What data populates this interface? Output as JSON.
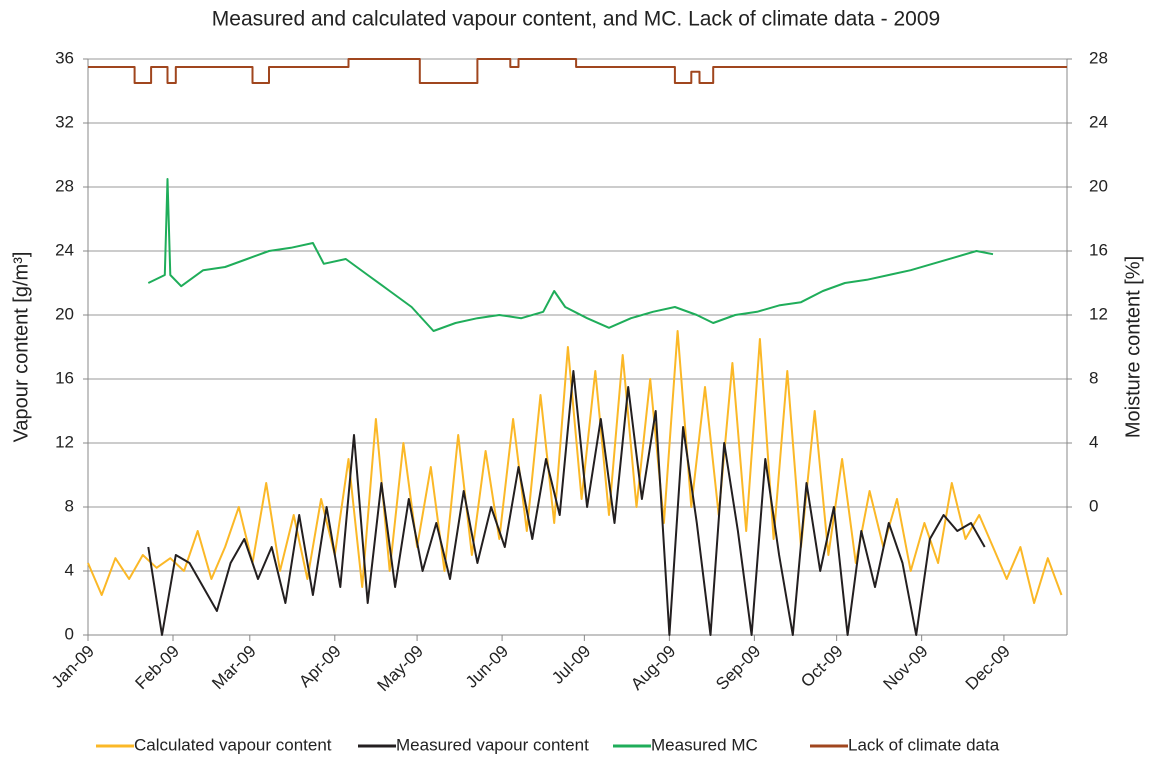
{
  "chart_data": {
    "type": "line",
    "title": "Measured and calculated vapour content, and MC. Lack of climate data - 2009",
    "y_label": "Vapour content [g/m³]",
    "y2_label": "Moisture content [%]",
    "xlim": [
      0,
      357
    ],
    "xticks": [
      {
        "value": 0,
        "label": "Jan-09"
      },
      {
        "value": 31,
        "label": "Feb-09"
      },
      {
        "value": 59,
        "label": "Mar-09"
      },
      {
        "value": 90,
        "label": "Apr-09"
      },
      {
        "value": 120,
        "label": "May-09"
      },
      {
        "value": 151,
        "label": "Jun-09"
      },
      {
        "value": 181,
        "label": "Jul-09"
      },
      {
        "value": 212,
        "label": "Aug-09"
      },
      {
        "value": 243,
        "label": "Sep-09"
      },
      {
        "value": 273,
        "label": "Oct-09"
      },
      {
        "value": 304,
        "label": "Nov-09"
      },
      {
        "value": 334,
        "label": "Dec-09"
      }
    ],
    "ylim": [
      0,
      36
    ],
    "yticks": [
      0,
      4,
      8,
      12,
      16,
      20,
      24,
      28,
      32,
      36
    ],
    "y2lim": [
      -8,
      28
    ],
    "y2ticks": [
      0,
      4,
      8,
      12,
      16,
      20,
      24,
      28
    ],
    "grid": true,
    "legend": "bottom",
    "series": [
      {
        "name": "Calculated vapour content",
        "color": "#fbb827",
        "x": [
          0,
          5,
          10,
          15,
          20,
          25,
          30,
          35,
          40,
          45,
          50,
          55,
          60,
          65,
          70,
          75,
          80,
          85,
          90,
          95,
          100,
          105,
          110,
          115,
          120,
          125,
          130,
          135,
          140,
          145,
          150,
          155,
          160,
          165,
          170,
          175,
          180,
          185,
          190,
          195,
          200,
          205,
          210,
          215,
          220,
          225,
          230,
          235,
          240,
          245,
          250,
          255,
          260,
          265,
          270,
          275,
          280,
          285,
          290,
          295,
          300,
          305,
          310,
          315,
          320,
          325,
          330,
          335,
          340,
          345,
          350,
          355
        ],
        "values": [
          4.5,
          2.5,
          4.8,
          3.5,
          5.0,
          4.2,
          4.8,
          4.0,
          6.5,
          3.5,
          5.5,
          8.0,
          4.5,
          9.5,
          4.0,
          7.5,
          3.5,
          8.5,
          5.0,
          11.0,
          3.0,
          13.5,
          4.0,
          12.0,
          5.5,
          10.5,
          4.0,
          12.5,
          5.0,
          11.5,
          6.0,
          13.5,
          6.5,
          15.0,
          7.0,
          18.0,
          8.5,
          16.5,
          7.5,
          17.5,
          8.0,
          16.0,
          7.0,
          19.0,
          8.0,
          15.5,
          7.5,
          17.0,
          6.5,
          18.5,
          6.0,
          16.5,
          5.5,
          14.0,
          5.0,
          11.0,
          4.5,
          9.0,
          5.5,
          8.5,
          4.0,
          7.0,
          4.5,
          9.5,
          6.0,
          7.5,
          5.5,
          3.5,
          5.5,
          2.0,
          4.8,
          2.5
        ]
      },
      {
        "name": "Measured vapour content",
        "color": "#231f20",
        "x": [
          22,
          27,
          32,
          37,
          42,
          47,
          52,
          57,
          62,
          67,
          72,
          77,
          82,
          87,
          92,
          97,
          102,
          107,
          112,
          117,
          122,
          127,
          132,
          137,
          142,
          147,
          152,
          157,
          162,
          167,
          172,
          177,
          182,
          187,
          192,
          197,
          202,
          207,
          212,
          217,
          222,
          227,
          232,
          237,
          242,
          247,
          252,
          257,
          262,
          267,
          272,
          277,
          282,
          287,
          292,
          297,
          302,
          307,
          312,
          317,
          322,
          327
        ],
        "values": [
          5.5,
          0,
          5.0,
          4.5,
          3.0,
          1.5,
          4.5,
          6.0,
          3.5,
          5.5,
          2.0,
          7.5,
          2.5,
          8.0,
          3.0,
          12.5,
          2.0,
          9.5,
          3.0,
          8.5,
          4.0,
          7.0,
          3.5,
          9.0,
          4.5,
          8.0,
          5.5,
          10.5,
          6.0,
          11.0,
          7.5,
          16.5,
          8.0,
          13.5,
          7.0,
          15.5,
          8.5,
          14.0,
          0,
          13.0,
          7.0,
          0,
          12.0,
          6.5,
          0,
          11.0,
          5.0,
          0,
          9.5,
          4.0,
          8.0,
          0,
          6.5,
          3.0,
          7.0,
          4.5,
          0,
          6.0,
          7.5,
          6.5,
          7.0,
          5.5
        ]
      },
      {
        "name": "Measured MC",
        "color": "#1fad5a",
        "axis": "y2",
        "x": [
          22,
          28,
          29,
          30,
          34,
          42,
          50,
          58,
          66,
          74,
          82,
          86,
          94,
          102,
          110,
          118,
          126,
          134,
          142,
          150,
          158,
          166,
          170,
          174,
          182,
          190,
          198,
          206,
          214,
          222,
          228,
          236,
          244,
          252,
          260,
          268,
          276,
          284,
          292,
          300,
          308,
          316,
          324,
          330
        ],
        "values": [
          14.0,
          14.5,
          20.5,
          14.5,
          13.8,
          14.8,
          15.0,
          15.5,
          16.0,
          16.2,
          16.5,
          15.2,
          15.5,
          14.5,
          13.5,
          12.5,
          11.0,
          11.5,
          11.8,
          12.0,
          11.8,
          12.2,
          13.5,
          12.5,
          11.8,
          11.2,
          11.8,
          12.2,
          12.5,
          12.0,
          11.5,
          12.0,
          12.2,
          12.6,
          12.8,
          13.5,
          14.0,
          14.2,
          14.5,
          14.8,
          15.2,
          15.6,
          16.0,
          15.8
        ]
      },
      {
        "name": "Lack of climate data",
        "color": "#a0461e",
        "x": [
          0,
          17,
          17,
          23,
          23,
          29,
          29,
          32,
          32,
          60,
          60,
          66,
          66,
          95,
          95,
          121,
          121,
          142,
          142,
          154,
          154,
          157,
          157,
          178,
          178,
          214,
          214,
          220,
          220,
          223,
          223,
          228,
          228,
          240,
          240,
          357
        ],
        "values": [
          35.5,
          35.5,
          34.5,
          34.5,
          35.5,
          35.5,
          34.5,
          34.5,
          35.5,
          35.5,
          34.5,
          34.5,
          35.5,
          35.5,
          36,
          36,
          34.5,
          34.5,
          36,
          36,
          35.5,
          35.5,
          36,
          36,
          35.5,
          35.5,
          34.5,
          34.5,
          35.2,
          35.2,
          34.5,
          34.5,
          35.5,
          35.5,
          35.5,
          35.5
        ]
      }
    ]
  }
}
